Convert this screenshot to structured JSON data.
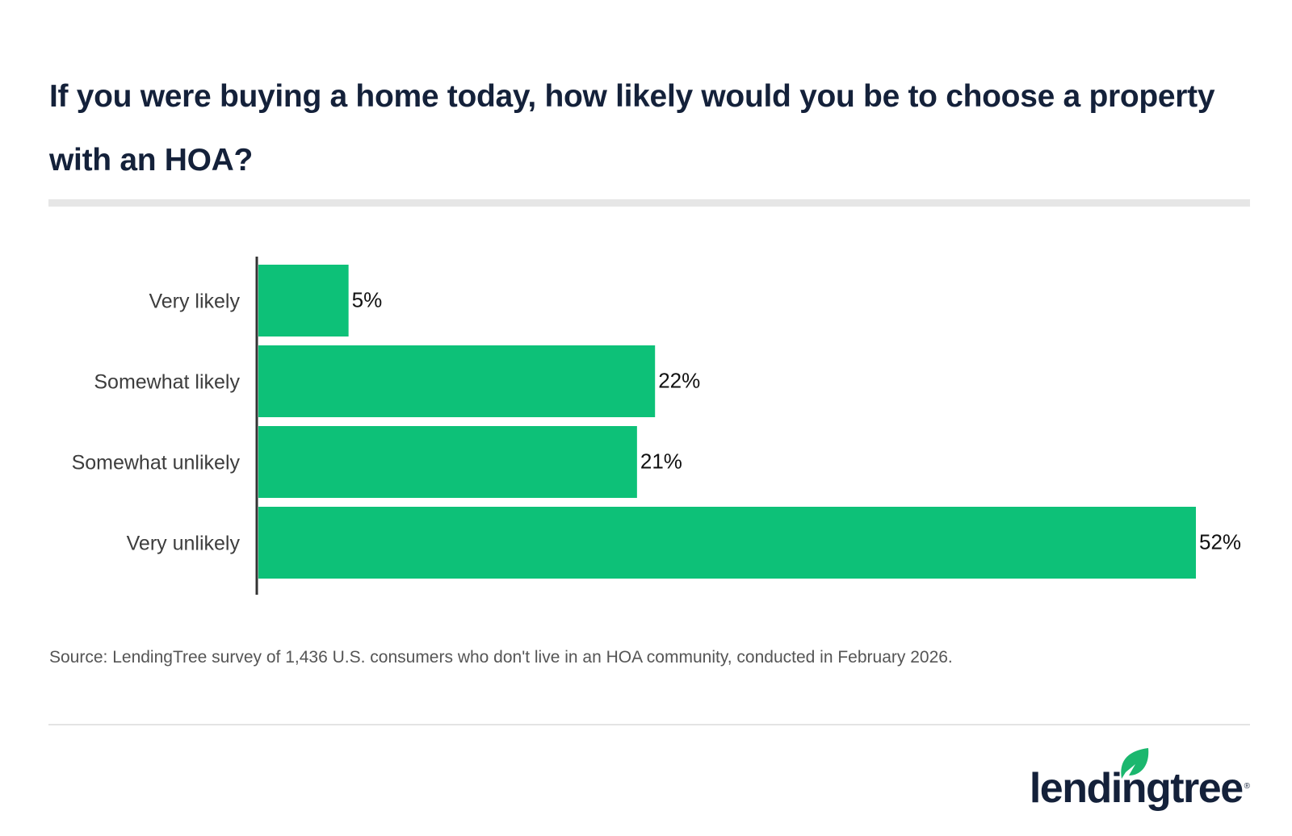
{
  "title": "If you were buying a home today, how likely would you be to choose a property with an HOA?",
  "source": "Source: LendingTree survey of 1,436 U.S. consumers who don't live in an HOA community, conducted in February 2026.",
  "logo": {
    "text": "lendingtree",
    "mark": "®",
    "leaf_color": "#1bb76e"
  },
  "chart_data": {
    "type": "bar",
    "orientation": "horizontal",
    "categories": [
      "Very likely",
      "Somewhat likely",
      "Somewhat unlikely",
      "Very unlikely"
    ],
    "values": [
      5,
      22,
      21,
      52
    ],
    "labels": [
      "5%",
      "22%",
      "21%",
      "52%"
    ],
    "unit": "%",
    "bar_color": "#0dc178",
    "grid": false,
    "legend": "none"
  }
}
